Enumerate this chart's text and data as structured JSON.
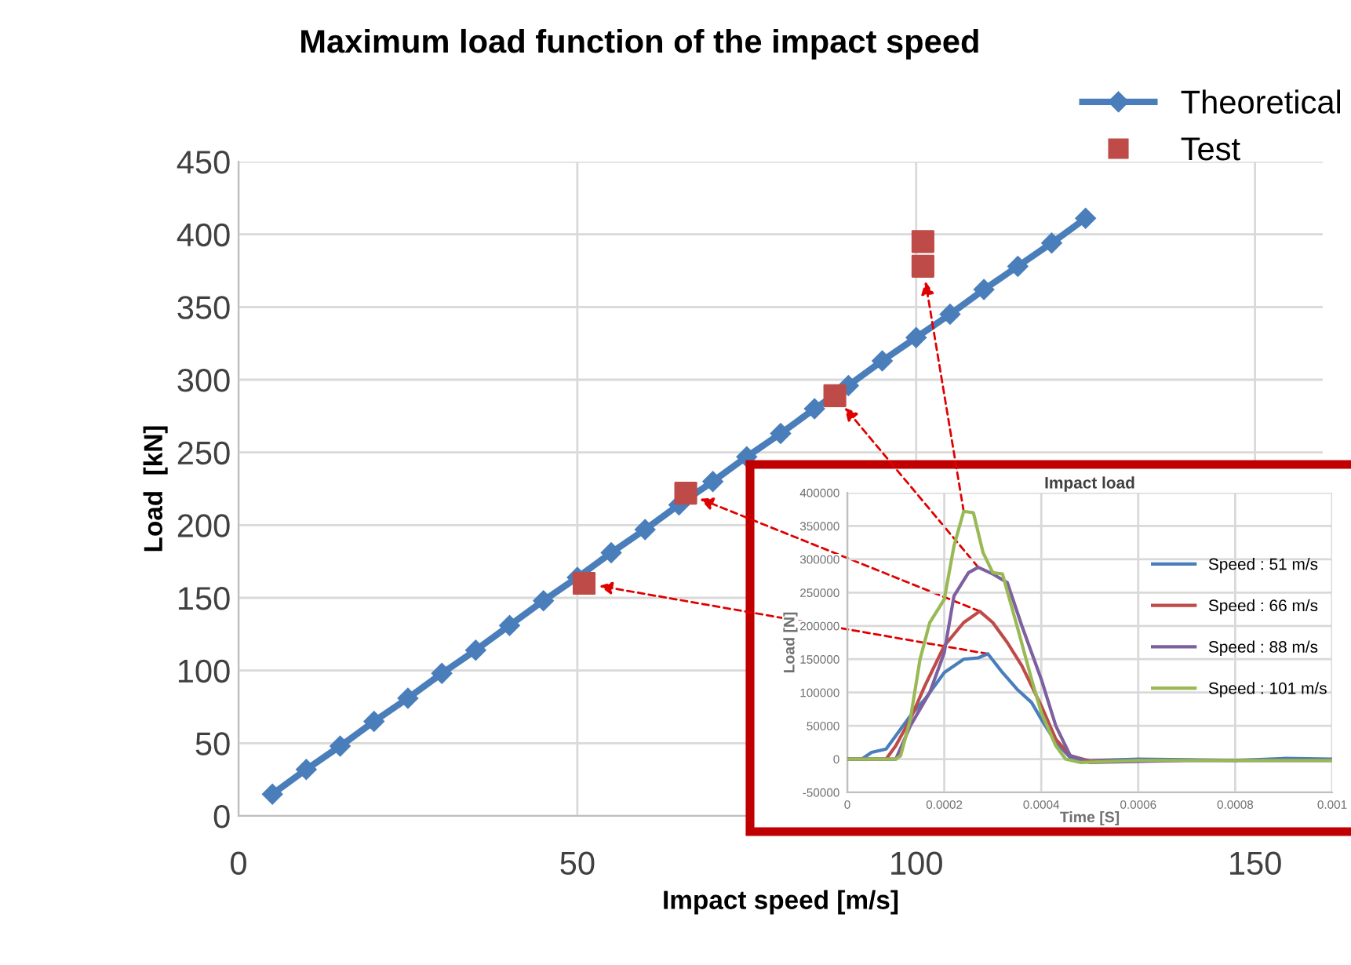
{
  "chart_data": [
    {
      "type": "line",
      "title": "Maximum load function of the impact speed",
      "xlabel": "Impact speed [m/s]",
      "ylabel": "Load  [kN]",
      "xlim": [
        0,
        160
      ],
      "xticks": [
        0,
        50,
        100,
        150
      ],
      "ylim": [
        0,
        450
      ],
      "yticks": [
        0,
        50,
        100,
        150,
        200,
        250,
        300,
        350,
        400,
        450
      ],
      "grid": true,
      "legend": "top right",
      "series": [
        {
          "name": "Theoretical",
          "type": "line",
          "marker": "diamond",
          "color": "#4a7ebb",
          "x": [
            5,
            10,
            15,
            20,
            25,
            30,
            35,
            40,
            45,
            50,
            55,
            60,
            65,
            70,
            75,
            80,
            85,
            90,
            95,
            100,
            105,
            110,
            115,
            120,
            125
          ],
          "values": [
            15,
            32,
            48,
            65,
            81,
            98,
            114,
            131,
            148,
            164,
            181,
            197,
            214,
            230,
            247,
            263,
            280,
            296,
            313,
            329,
            345,
            362,
            378,
            394,
            411
          ]
        },
        {
          "name": "Test",
          "type": "scatter",
          "marker": "square",
          "color": "#be4b48",
          "x": [
            51,
            66,
            88,
            101,
            101
          ],
          "values": [
            160,
            222,
            289,
            378,
            395
          ]
        }
      ]
    },
    {
      "type": "line",
      "title": "Impact load",
      "xlabel": "Time [S]",
      "ylabel": "Load [N]",
      "xlim": [
        0,
        0.001
      ],
      "xticks": [
        0,
        0.0002,
        0.0004,
        0.0006,
        0.0008,
        0.001
      ],
      "ylim": [
        -50000,
        400000
      ],
      "yticks": [
        -50000,
        0,
        50000,
        100000,
        150000,
        200000,
        250000,
        300000,
        350000,
        400000
      ],
      "grid": true,
      "legend": "right",
      "series": [
        {
          "name": "Speed : 51 m/s",
          "color": "#4a7ebb",
          "x": [
            0,
            3e-05,
            5e-05,
            8e-05,
            0.0001,
            0.00013,
            0.00016,
            0.0002,
            0.00024,
            0.00027,
            0.00029,
            0.00032,
            0.00035,
            0.00038,
            0.0004,
            0.00043,
            0.00046,
            0.00048,
            0.0006,
            0.0007,
            0.0008,
            0.0009,
            0.001
          ],
          "values": [
            0,
            0,
            10000,
            15000,
            35000,
            65000,
            90000,
            130000,
            150000,
            152000,
            158000,
            130000,
            105000,
            85000,
            60000,
            25000,
            2000,
            -3000,
            0,
            -1000,
            -2000,
            1000,
            0
          ]
        },
        {
          "name": "Speed : 66 m/s",
          "color": "#be4b48",
          "x": [
            0,
            8e-05,
            0.0001,
            0.00013,
            0.00016,
            0.0002,
            0.00024,
            0.000273,
            0.0003,
            0.00033,
            0.00036,
            0.0004,
            0.00043,
            0.00046,
            0.0005,
            0.0007,
            0.001
          ],
          "values": [
            0,
            0,
            20000,
            60000,
            110000,
            170000,
            205000,
            222000,
            205000,
            175000,
            140000,
            80000,
            30000,
            5000,
            -3000,
            -2000,
            -2000
          ]
        },
        {
          "name": "Speed : 88 m/s",
          "color": "#7d60a0",
          "x": [
            0,
            0.0001,
            0.00013,
            0.00017,
            0.0002,
            0.00022,
            0.00025,
            0.00027,
            0.0003,
            0.00033,
            0.00036,
            0.0004,
            0.00043,
            0.00046,
            0.0005,
            0.0007,
            0.001
          ],
          "values": [
            0,
            0,
            50000,
            100000,
            160000,
            245000,
            280000,
            288000,
            278000,
            265000,
            200000,
            120000,
            50000,
            5000,
            -5000,
            -2000,
            -2000
          ]
        },
        {
          "name": "Speed : 101 m/s",
          "color": "#98b954",
          "x": [
            0,
            0.0001,
            0.00011,
            0.00013,
            0.00015,
            0.00017,
            0.0002,
            0.00022,
            0.00024,
            0.00026,
            0.00028,
            0.0003,
            0.00032,
            0.00035,
            0.00038,
            0.0004,
            0.00043,
            0.00045,
            0.00048,
            0.0006,
            0.001
          ],
          "values": [
            0,
            0,
            5000,
            60000,
            150000,
            205000,
            240000,
            320000,
            372000,
            370000,
            310000,
            280000,
            278000,
            200000,
            120000,
            70000,
            20000,
            0,
            -5000,
            -2000,
            -2000
          ]
        }
      ]
    }
  ]
}
